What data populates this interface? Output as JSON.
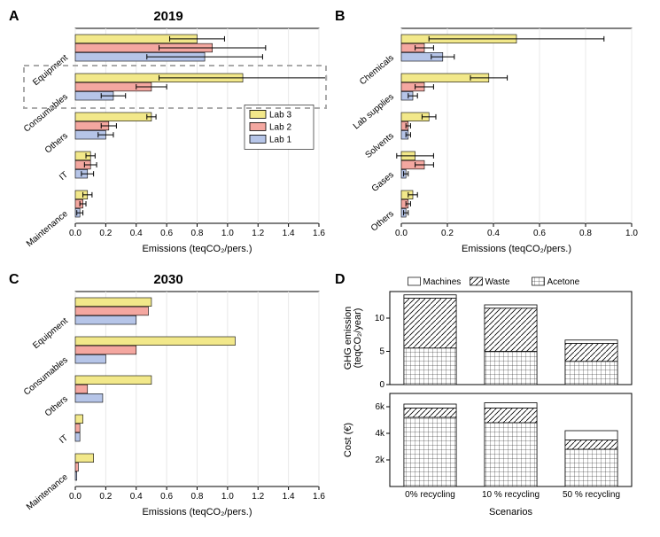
{
  "colors": {
    "lab1": "#b6c5e8",
    "lab2": "#f4a7a0",
    "lab3": "#f2e88a",
    "axis": "#000000",
    "grid": "#e8e8e8",
    "bg": "#ffffff",
    "callout": "#aaaaaa"
  },
  "panelA": {
    "label": "A",
    "title": "2019",
    "xlabel": "Emissions (teqCO₂/pers.)",
    "xlim": [
      0,
      1.6
    ],
    "xtick_step": 0.2,
    "categories": [
      "Equipment",
      "Consumables",
      "Others",
      "IT",
      "Maintenance"
    ],
    "series": [
      {
        "name": "Lab 3",
        "color": "#f2e88a",
        "values": [
          0.8,
          1.1,
          0.5,
          0.1,
          0.08
        ],
        "err": [
          0.18,
          0.55,
          0.03,
          0.03,
          0.03
        ]
      },
      {
        "name": "Lab 2",
        "color": "#f4a7a0",
        "values": [
          0.9,
          0.5,
          0.22,
          0.1,
          0.05
        ],
        "err": [
          0.35,
          0.1,
          0.05,
          0.04,
          0.02
        ]
      },
      {
        "name": "Lab 1",
        "color": "#b6c5e8",
        "values": [
          0.85,
          0.25,
          0.2,
          0.08,
          0.03
        ],
        "err": [
          0.38,
          0.08,
          0.05,
          0.04,
          0.02
        ]
      }
    ],
    "legend": [
      "Lab 3",
      "Lab 2",
      "Lab 1"
    ],
    "callout_category_index": 1
  },
  "panelB": {
    "label": "B",
    "xlabel": "Emissions (teqCO₂/pers.)",
    "xlim": [
      0,
      1.0
    ],
    "xtick_step": 0.2,
    "categories": [
      "Chemicals",
      "Lab supplies",
      "Solvents",
      "Gases",
      "Others"
    ],
    "series": [
      {
        "name": "Lab 3",
        "color": "#f2e88a",
        "values": [
          0.5,
          0.38,
          0.12,
          0.06,
          0.05
        ],
        "err": [
          0.38,
          0.08,
          0.03,
          0.08,
          0.02
        ]
      },
      {
        "name": "Lab 2",
        "color": "#f4a7a0",
        "values": [
          0.1,
          0.1,
          0.03,
          0.1,
          0.03
        ],
        "err": [
          0.04,
          0.04,
          0.01,
          0.04,
          0.01
        ]
      },
      {
        "name": "Lab 1",
        "color": "#b6c5e8",
        "values": [
          0.18,
          0.05,
          0.03,
          0.02,
          0.02
        ],
        "err": [
          0.05,
          0.02,
          0.01,
          0.01,
          0.01
        ]
      }
    ]
  },
  "panelC": {
    "label": "C",
    "title": "2030",
    "xlabel": "Emissions (teqCO₂/pers.)",
    "xlim": [
      0,
      1.6
    ],
    "xtick_step": 0.2,
    "categories": [
      "Equipment",
      "Consumables",
      "Others",
      "IT",
      "Maintenance"
    ],
    "series": [
      {
        "name": "Lab 3",
        "color": "#f2e88a",
        "values": [
          0.5,
          1.05,
          0.5,
          0.05,
          0.12
        ],
        "err": null
      },
      {
        "name": "Lab 2",
        "color": "#f4a7a0",
        "values": [
          0.48,
          0.4,
          0.08,
          0.03,
          0.02
        ],
        "err": null
      },
      {
        "name": "Lab 1",
        "color": "#b6c5e8",
        "values": [
          0.4,
          0.2,
          0.18,
          0.03,
          0.01
        ],
        "err": null
      }
    ]
  },
  "panelD": {
    "label": "D",
    "legend": [
      "Machines",
      "Waste",
      "Acetone"
    ],
    "scenarios": [
      "0% recycling",
      "10 % recycling",
      "50 % recycling"
    ],
    "xlabel": "Scenarios",
    "top": {
      "ylabel": "GHG emission\n(teqCO₂/year)",
      "ylim": [
        0,
        14
      ],
      "ytick_step": 5,
      "stacks": [
        {
          "Acetone": 5.5,
          "Waste": 7.5,
          "Machines": 0.5
        },
        {
          "Acetone": 5.0,
          "Waste": 6.5,
          "Machines": 0.5
        },
        {
          "Acetone": 3.5,
          "Waste": 2.7,
          "Machines": 0.5
        }
      ]
    },
    "bottom": {
      "ylabel": "Cost (€)",
      "ylim": [
        0,
        7000
      ],
      "yticks": [
        2000,
        4000,
        6000
      ],
      "ytick_labels": [
        "2k",
        "4k",
        "6k"
      ],
      "stacks": [
        {
          "Acetone": 5200,
          "Waste": 700,
          "Machines": 300
        },
        {
          "Acetone": 4800,
          "Waste": 1100,
          "Machines": 400
        },
        {
          "Acetone": 2800,
          "Waste": 700,
          "Machines": 700
        }
      ]
    },
    "bar_fill": "#ffffff",
    "bar_stroke": "#000000"
  }
}
